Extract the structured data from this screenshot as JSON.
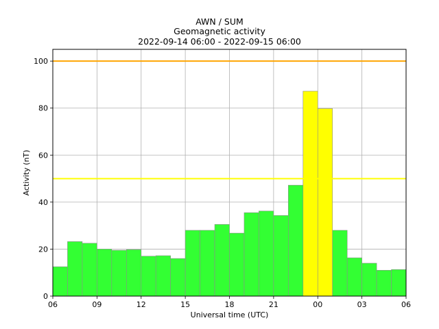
{
  "chart_data": {
    "type": "bar",
    "title": "AWN / SUM",
    "subtitle": "Geomagnetic activity",
    "period": "2022-09-14 06:00 - 2022-09-15 06:00",
    "xlabel": "Universal time (UTC)",
    "ylabel": "Activity (nT)",
    "ylim": [
      0,
      105
    ],
    "yticks": [
      0,
      20,
      40,
      60,
      80,
      100
    ],
    "xlim": [
      0,
      24
    ],
    "xticks": [
      {
        "pos": 0,
        "label": "06"
      },
      {
        "pos": 3,
        "label": "09"
      },
      {
        "pos": 6,
        "label": "12"
      },
      {
        "pos": 9,
        "label": "15"
      },
      {
        "pos": 12,
        "label": "18"
      },
      {
        "pos": 15,
        "label": "21"
      },
      {
        "pos": 18,
        "label": "00"
      },
      {
        "pos": 21,
        "label": "03"
      },
      {
        "pos": 24,
        "label": "06"
      }
    ],
    "grid": true,
    "thresholds": [
      {
        "value": 100,
        "color": "#ffa500"
      },
      {
        "value": 50,
        "color": "#ffff00"
      }
    ],
    "bar_colors": {
      "normal": "#33ff33",
      "elevated": "#ffff00"
    },
    "values": [
      12.5,
      23.2,
      22.5,
      20,
      19.5,
      19.8,
      17,
      17.2,
      16,
      28,
      28,
      30.5,
      26.8,
      35.5,
      36.2,
      34.3,
      47.2,
      87.2,
      79.8,
      28,
      16.3,
      14,
      11,
      11.3
    ],
    "levels": [
      "normal",
      "normal",
      "normal",
      "normal",
      "normal",
      "normal",
      "normal",
      "normal",
      "normal",
      "normal",
      "normal",
      "normal",
      "normal",
      "normal",
      "normal",
      "normal",
      "normal",
      "elevated",
      "elevated",
      "normal",
      "normal",
      "normal",
      "normal",
      "normal"
    ]
  }
}
